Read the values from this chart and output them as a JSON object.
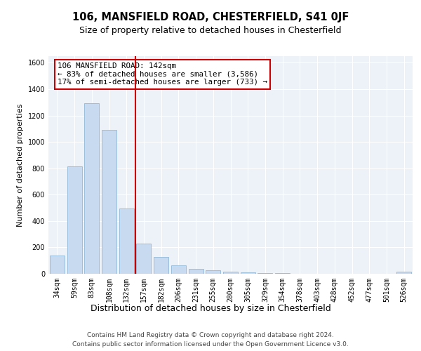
{
  "title1": "106, MANSFIELD ROAD, CHESTERFIELD, S41 0JF",
  "title2": "Size of property relative to detached houses in Chesterfield",
  "xlabel": "Distribution of detached houses by size in Chesterfield",
  "ylabel": "Number of detached properties",
  "categories": [
    "34sqm",
    "59sqm",
    "83sqm",
    "108sqm",
    "132sqm",
    "157sqm",
    "182sqm",
    "206sqm",
    "231sqm",
    "255sqm",
    "280sqm",
    "305sqm",
    "329sqm",
    "354sqm",
    "378sqm",
    "403sqm",
    "428sqm",
    "452sqm",
    "477sqm",
    "501sqm",
    "526sqm"
  ],
  "values": [
    140,
    815,
    1295,
    1090,
    495,
    230,
    130,
    65,
    38,
    27,
    15,
    8,
    3,
    3,
    0,
    0,
    0,
    0,
    0,
    0,
    15
  ],
  "bar_color": "#c8daf0",
  "bar_edge_color": "#90b8d8",
  "vline_color": "#cc0000",
  "annotation_text": "106 MANSFIELD ROAD: 142sqm\n← 83% of detached houses are smaller (3,586)\n17% of semi-detached houses are larger (733) →",
  "annotation_box_color": "#ffffff",
  "annotation_box_edge": "#cc0000",
  "ylim": [
    0,
    1650
  ],
  "yticks": [
    0,
    200,
    400,
    600,
    800,
    1000,
    1200,
    1400,
    1600
  ],
  "footer1": "Contains HM Land Registry data © Crown copyright and database right 2024.",
  "footer2": "Contains public sector information licensed under the Open Government Licence v3.0.",
  "bg_color": "#edf2f9",
  "fig_bg_color": "#ffffff",
  "title1_fontsize": 10.5,
  "title2_fontsize": 9,
  "ylabel_fontsize": 8,
  "xlabel_fontsize": 9,
  "tick_fontsize": 7,
  "footer_fontsize": 6.5,
  "annot_fontsize": 7.8
}
